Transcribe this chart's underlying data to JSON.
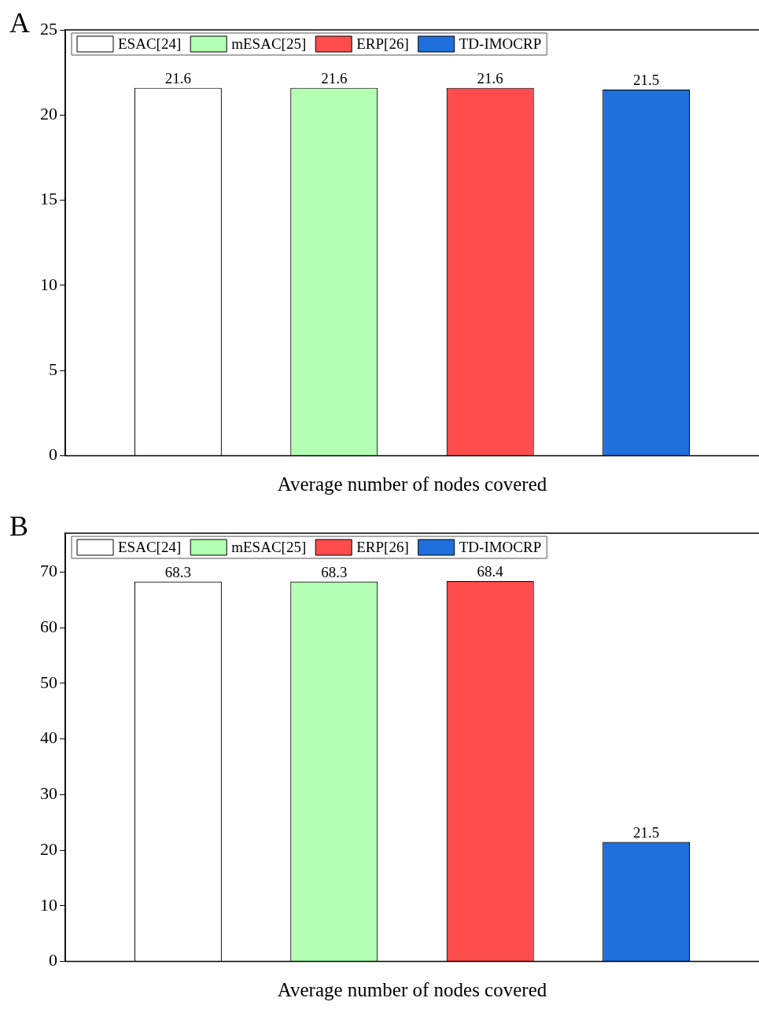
{
  "chart_data": [
    {
      "type": "bar",
      "title": "A",
      "xlabel": "Average number of nodes covered",
      "categories": [
        null
      ],
      "series": [
        {
          "name": "ESAC[24]",
          "color": "#ffffff",
          "values": [
            21.6
          ]
        },
        {
          "name": "mESAC[25]",
          "color": "#b3ffb3",
          "values": [
            21.6
          ]
        },
        {
          "name": "ERP[26]",
          "color": "#ff4d4d",
          "values": [
            21.6
          ]
        },
        {
          "name": "TD-IMOCRP",
          "color": "#1f6fdc",
          "values": [
            21.5
          ]
        }
      ],
      "ylim": [
        0,
        25
      ],
      "yticks": [
        0,
        5,
        10,
        15,
        20,
        25
      ],
      "grid": false,
      "legend": "top left",
      "data_labels": true
    },
    {
      "type": "bar",
      "title": "B",
      "xlabel": "Average number of nodes covered",
      "categories": [
        null
      ],
      "series": [
        {
          "name": "ESAC[24]",
          "color": "#ffffff",
          "values": [
            68.3
          ]
        },
        {
          "name": "mESAC[25]",
          "color": "#b3ffb3",
          "values": [
            68.3
          ]
        },
        {
          "name": "ERP[26]",
          "color": "#ff4d4d",
          "values": [
            68.4
          ]
        },
        {
          "name": "TD-IMOCRP",
          "color": "#1f6fdc",
          "values": [
            21.5
          ]
        }
      ],
      "ylim": [
        0,
        77
      ],
      "yticks": [
        0,
        10,
        20,
        30,
        40,
        50,
        60,
        70
      ],
      "grid": false,
      "legend": "top left",
      "data_labels": true
    }
  ]
}
